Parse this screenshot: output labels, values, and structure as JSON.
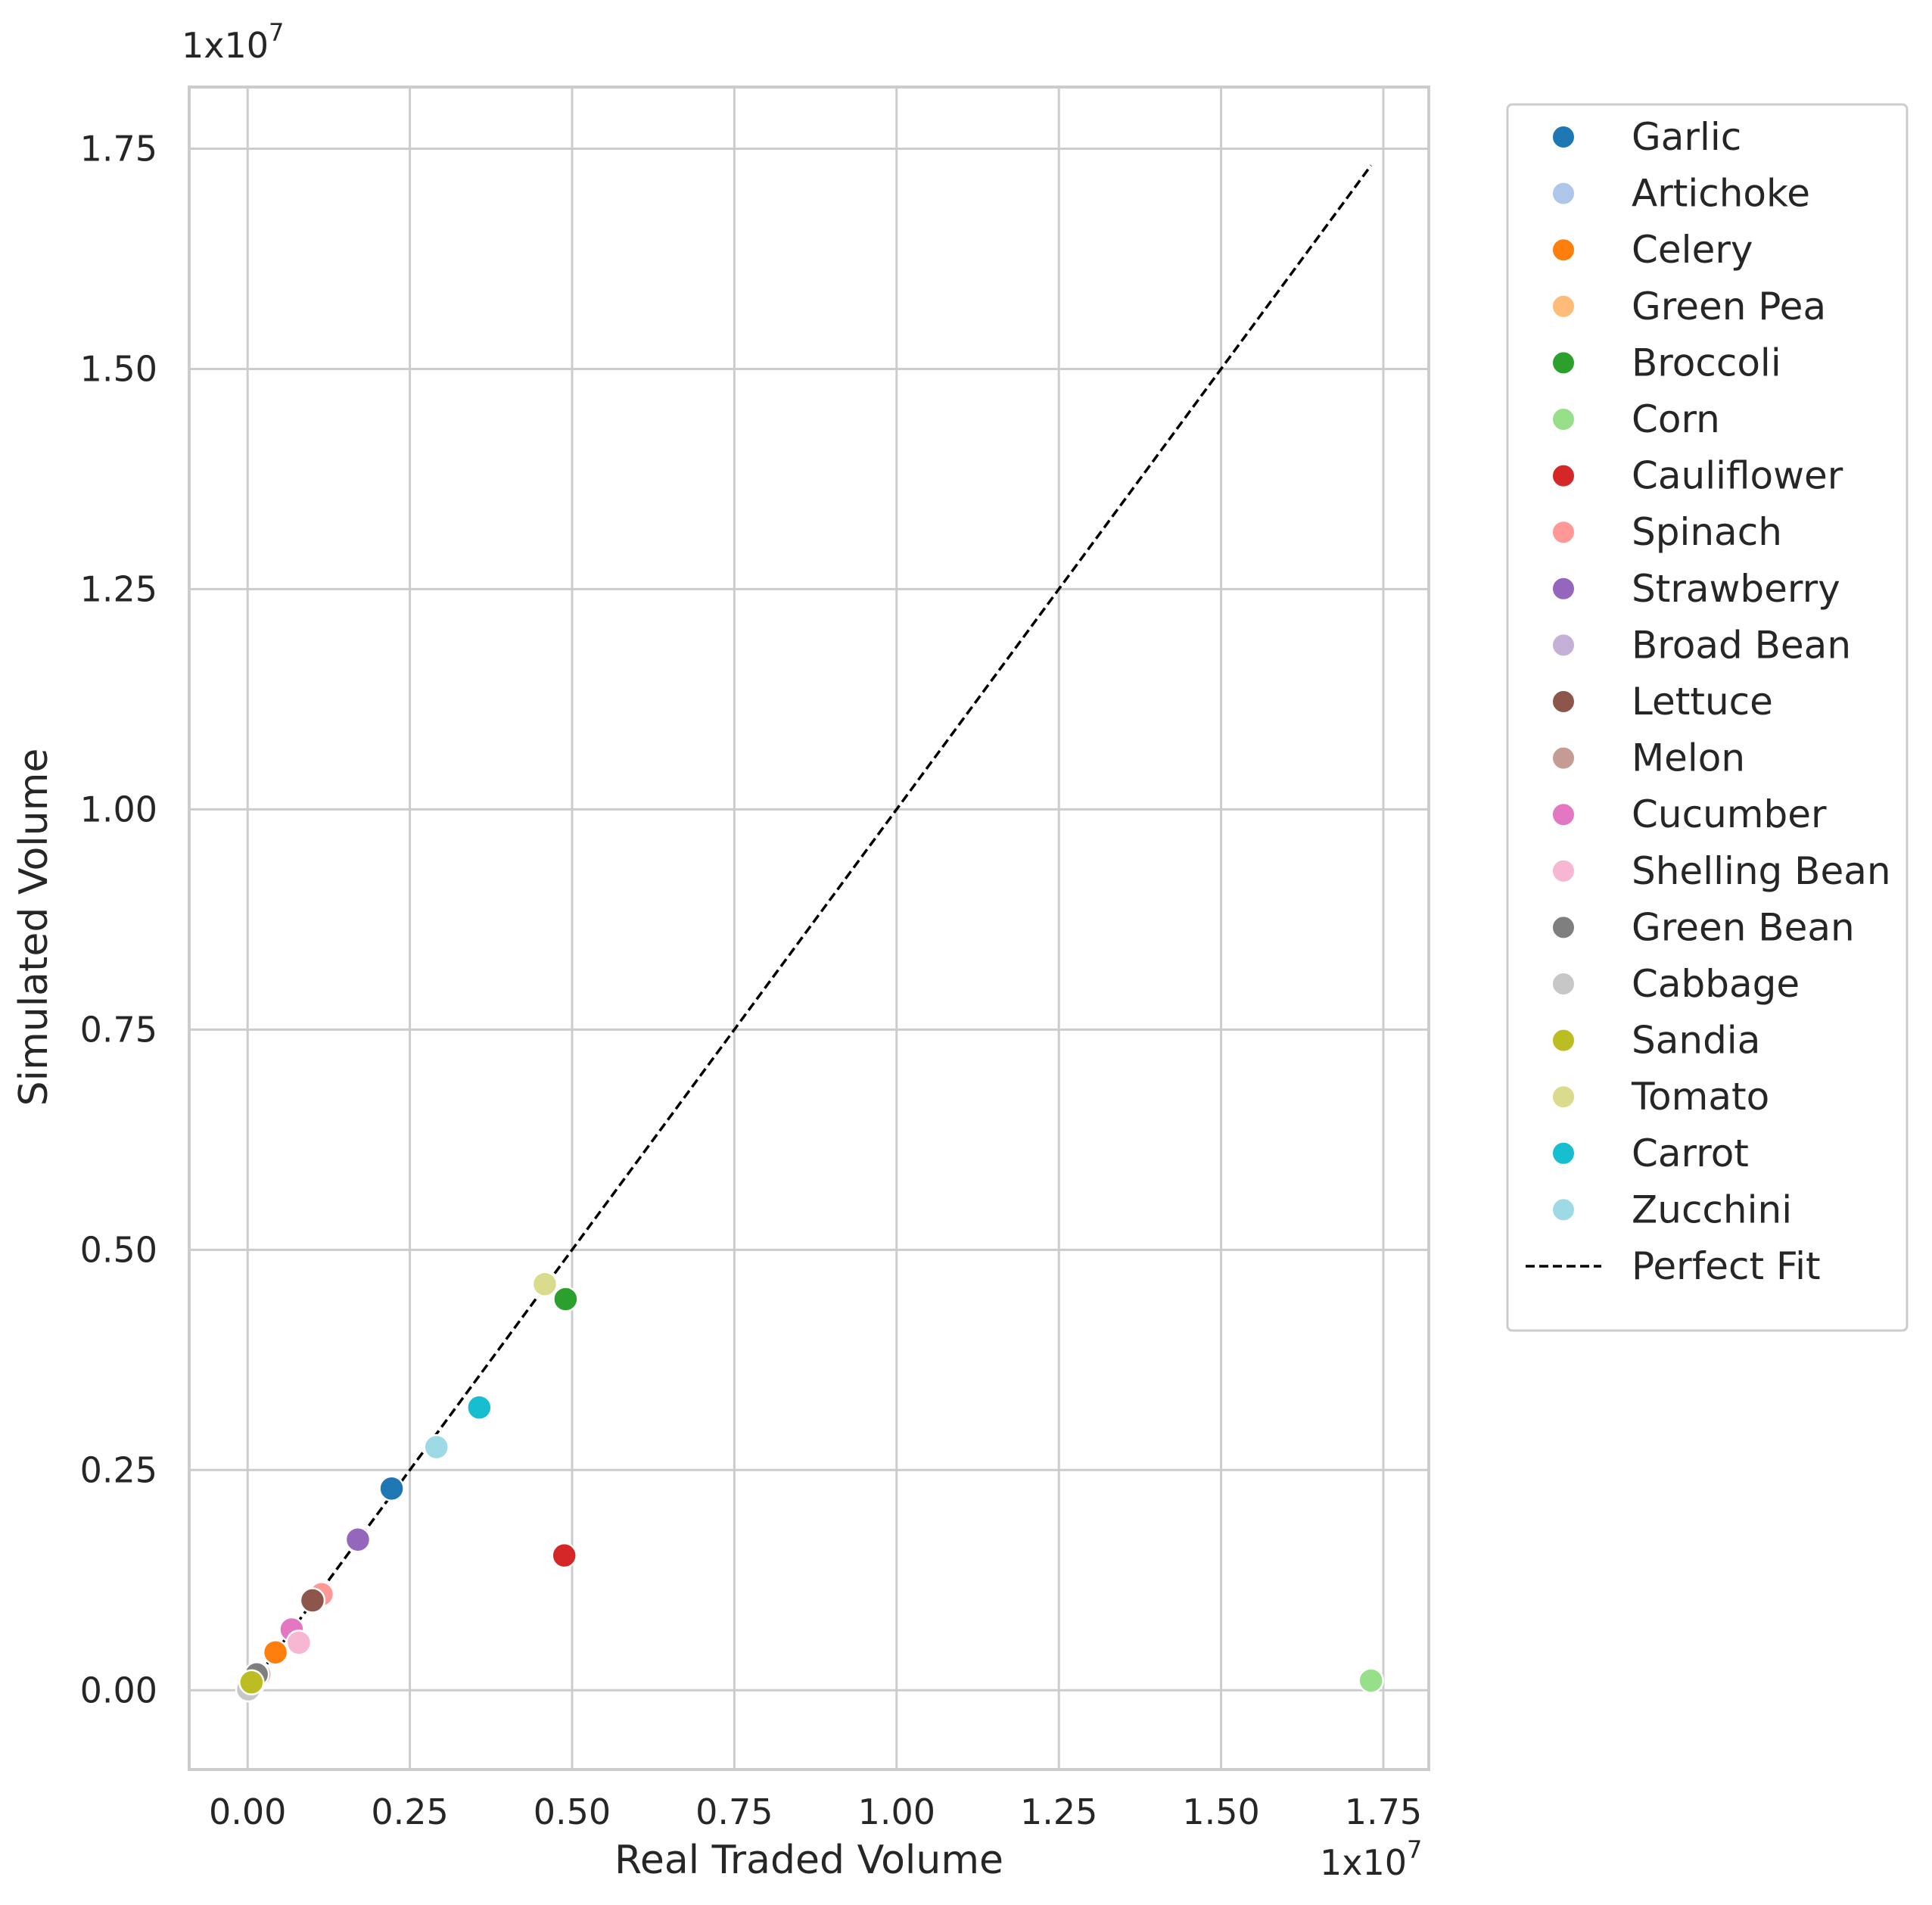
{
  "chart_data": {
    "type": "scatter",
    "title": "",
    "xlabel": "Real Traded Volume",
    "ylabel": "Simulated Volume",
    "x_offset_label": {
      "base": "1x10",
      "exp": "7"
    },
    "y_offset_label": {
      "base": "1x10",
      "exp": "7"
    },
    "xlim": [
      -0.09,
      1.82
    ],
    "ylim": [
      -0.09,
      1.82
    ],
    "xticks": [
      "0.00",
      "0.25",
      "0.50",
      "0.75",
      "1.00",
      "1.25",
      "1.50",
      "1.75"
    ],
    "yticks": [
      "0.00",
      "0.25",
      "0.50",
      "0.75",
      "1.00",
      "1.25",
      "1.50",
      "1.75"
    ],
    "grid": true,
    "legend_position": "outside-right-top",
    "series": [
      {
        "name": "Garlic",
        "color": "#1f77b4",
        "x": 0.222,
        "y": 0.229
      },
      {
        "name": "Artichoke",
        "color": "#aec7e8",
        "x": 0.012,
        "y": 0.012
      },
      {
        "name": "Celery",
        "color": "#ff7f0e",
        "x": 0.043,
        "y": 0.043
      },
      {
        "name": "Green Pea",
        "color": "#ffbb78",
        "x": 0.006,
        "y": 0.006
      },
      {
        "name": "Broccoli",
        "color": "#2ca02c",
        "x": 0.49,
        "y": 0.444
      },
      {
        "name": "Corn",
        "color": "#98df8a",
        "x": 1.731,
        "y": 0.011
      },
      {
        "name": "Cauliflower",
        "color": "#d62728",
        "x": 0.488,
        "y": 0.153
      },
      {
        "name": "Spinach",
        "color": "#ff9896",
        "x": 0.114,
        "y": 0.109
      },
      {
        "name": "Strawberry",
        "color": "#9467bd",
        "x": 0.17,
        "y": 0.171
      },
      {
        "name": "Broad Bean",
        "color": "#c5b0d5",
        "x": 0.015,
        "y": 0.015
      },
      {
        "name": "Lettuce",
        "color": "#8c564b",
        "x": 0.1,
        "y": 0.102
      },
      {
        "name": "Melon",
        "color": "#c49c94",
        "x": 0.018,
        "y": 0.018
      },
      {
        "name": "Cucumber",
        "color": "#e377c2",
        "x": 0.068,
        "y": 0.069
      },
      {
        "name": "Shelling Bean",
        "color": "#f7b6d2",
        "x": 0.079,
        "y": 0.054
      },
      {
        "name": "Green Bean",
        "color": "#7f7f7f",
        "x": 0.014,
        "y": 0.018
      },
      {
        "name": "Cabbage",
        "color": "#c7c7c7",
        "x": 0.001,
        "y": 0.001
      },
      {
        "name": "Sandia",
        "color": "#bcbd22",
        "x": 0.006,
        "y": 0.009
      },
      {
        "name": "Tomato",
        "color": "#dbdb8d",
        "x": 0.458,
        "y": 0.461
      },
      {
        "name": "Carrot",
        "color": "#17becf",
        "x": 0.357,
        "y": 0.321
      },
      {
        "name": "Zucchini",
        "color": "#9edae5",
        "x": 0.291,
        "y": 0.276
      }
    ],
    "reference_line": {
      "name": "Perfect Fit",
      "style": "dashed",
      "color": "#000000",
      "from": [
        0.0,
        0.0
      ],
      "to": [
        1.731,
        1.731
      ]
    }
  }
}
